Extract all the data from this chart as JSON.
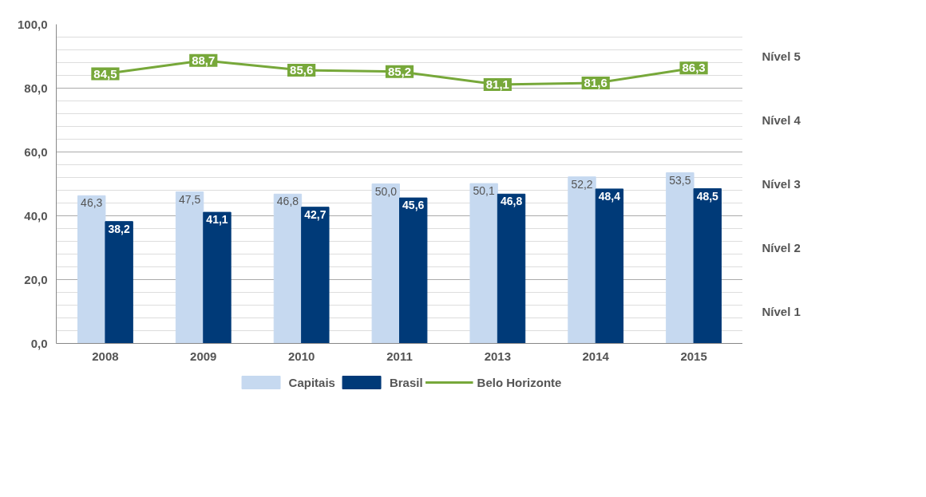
{
  "chart_data": {
    "type": "bar",
    "categories": [
      "2008",
      "2009",
      "2010",
      "2011",
      "2013",
      "2014",
      "2015"
    ],
    "series": [
      {
        "name": "Capitais",
        "color": "#c6d9f0",
        "values": [
          46.3,
          47.5,
          46.8,
          50.0,
          50.1,
          52.2,
          53.5
        ],
        "value_labels": [
          "46,3",
          "47,5",
          "46,8",
          "50,0",
          "50,1",
          "52,2",
          "53,5"
        ]
      },
      {
        "name": "Brasil",
        "color": "#003a78",
        "values": [
          38.2,
          41.1,
          42.7,
          45.6,
          46.8,
          48.4,
          48.5
        ],
        "value_labels": [
          "38,2",
          "41,1",
          "42,7",
          "45,6",
          "46,8",
          "48,4",
          "48,5"
        ]
      },
      {
        "name": "Belo Horizonte",
        "type": "line",
        "color": "#77a83a",
        "values": [
          84.5,
          88.7,
          85.6,
          85.2,
          81.1,
          81.6,
          86.3
        ],
        "value_labels": [
          "84,5",
          "88,7",
          "85,6",
          "85,2",
          "81,1",
          "81,6",
          "86,3"
        ]
      }
    ],
    "ylim": [
      0,
      100
    ],
    "yticks": [
      {
        "value": 0,
        "label": "0,0"
      },
      {
        "value": 20,
        "label": "20,0"
      },
      {
        "value": 40,
        "label": "40,0"
      },
      {
        "value": 60,
        "label": "60,0"
      },
      {
        "value": 80,
        "label": "80,0"
      },
      {
        "value": 100,
        "label": "100,0"
      }
    ],
    "annotations": [
      "Nível 5",
      "Nível 4",
      "Nível 3",
      "Nível 2",
      "Nível 1"
    ],
    "grid": "y",
    "legend": "bottom",
    "line_style": "solid",
    "marker": "square"
  }
}
